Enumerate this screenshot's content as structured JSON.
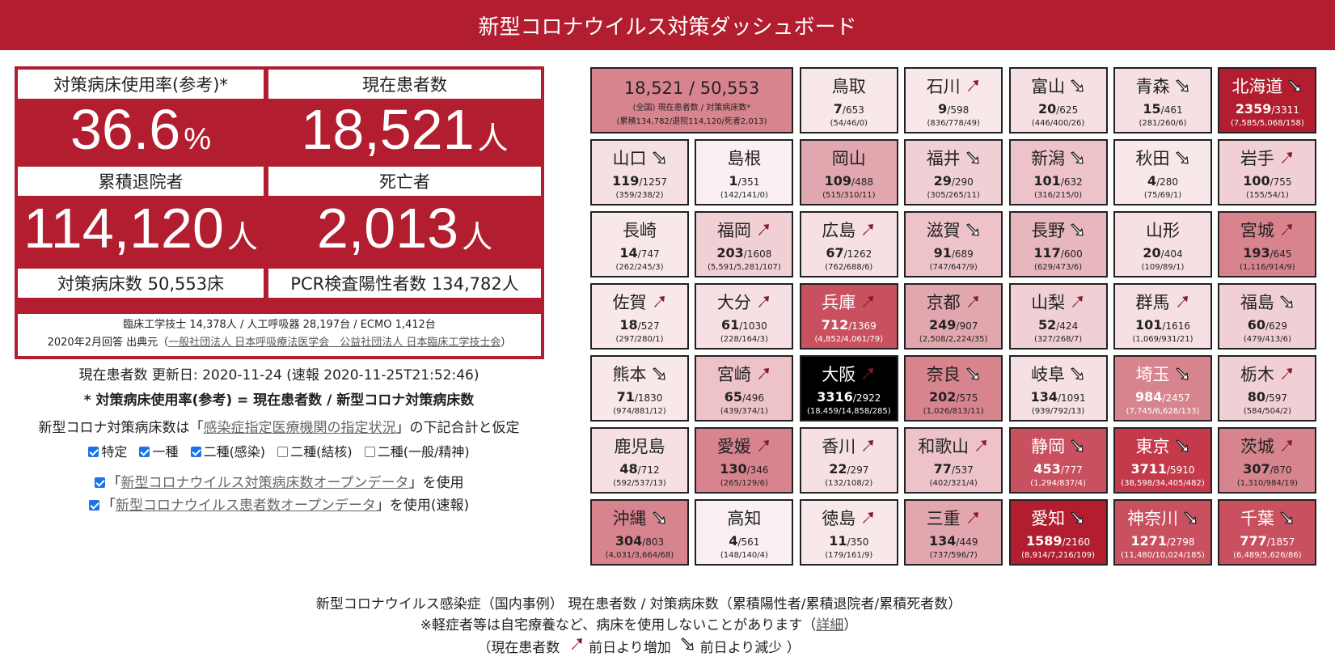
{
  "header": {
    "title": "新型コロナウイルス対策ダッシュボード"
  },
  "stats": {
    "occupancy_label": "対策病床使用率(参考)*",
    "occupancy_value": "36.6",
    "occupancy_unit": "%",
    "patients_label": "現在患者数",
    "patients_value": "18,521",
    "patients_unit": "人",
    "discharged_label": "累積退院者",
    "discharged_value": "114,120",
    "discharged_unit": "人",
    "deaths_label": "死亡者",
    "deaths_value": "2,013",
    "deaths_unit": "人",
    "beds_label": "対策病床数 50,553床",
    "pcr_label": "PCR検査陽性者数 134,782人",
    "equipment": "臨床工学技士 14,378人 / 人工呼吸器 28,197台 / ECMO 1,412台",
    "source_prefix": "2020年2月回答 出典元（",
    "source_link": "一般社団法人 日本呼吸療法医学会　公益社団法人 日本臨床工学技士会",
    "source_suffix": "）"
  },
  "info": {
    "updated": "現在患者数 更新日: 2020-11-24 (速報 2020-11-25T21:52:46)",
    "formula": "* 対策病床使用率(参考) = 現在患者数 / 新型コロナ対策病床数",
    "assume_prefix": "新型コロナ対策病床数は「",
    "assume_link": "感染症指定医療機関の指定状況",
    "assume_suffix": "」の下記合計と仮定"
  },
  "checks": {
    "row1": [
      {
        "label": "特定",
        "checked": true
      },
      {
        "label": "一種",
        "checked": true
      },
      {
        "label": "二種(感染)",
        "checked": true
      },
      {
        "label": "二種(結核)",
        "checked": false
      },
      {
        "label": "二種(一般/精神)",
        "checked": false
      }
    ],
    "open1_prefix": "「",
    "open1_link": "新型コロナウイルス対策病床数オープンデータ",
    "open1_suffix": "」を使用",
    "open2_prefix": "「",
    "open2_link": "新型コロナウイルス患者数オープンデータ",
    "open2_suffix": "」を使用(速報)"
  },
  "summary": {
    "value": "18,521 / 50,553",
    "line1": "(全国) 現在患者数 / 対策病床数*",
    "line2": "(累積134,782/退院114,120/死者2,013)",
    "color": "#d8848e"
  },
  "prefectures": [
    {
      "name": "鳥取",
      "cur": "7",
      "beds": "653",
      "sub": "(54/46/0)",
      "trend": "",
      "bg": "#f9e8ea"
    },
    {
      "name": "石川",
      "cur": "9",
      "beds": "598",
      "sub": "(836/778/49)",
      "trend": "up",
      "bg": "#f9e8ea"
    },
    {
      "name": "富山",
      "cur": "20",
      "beds": "625",
      "sub": "(446/400/26)",
      "trend": "down",
      "bg": "#f6e0e3"
    },
    {
      "name": "青森",
      "cur": "15",
      "beds": "461",
      "sub": "(281/260/6)",
      "trend": "down",
      "bg": "#f6e0e3"
    },
    {
      "name": "北海道",
      "cur": "2359",
      "beds": "3311",
      "sub": "(7,585/5,068/158)",
      "trend": "down",
      "bg": "#b21e2f",
      "dark": true
    },
    {
      "name": "山口",
      "cur": "119",
      "beds": "1257",
      "sub": "(359/238/2)",
      "trend": "down",
      "bg": "#f6e0e3"
    },
    {
      "name": "島根",
      "cur": "1",
      "beds": "351",
      "sub": "(142/141/0)",
      "trend": "",
      "bg": "#fbf0f1"
    },
    {
      "name": "岡山",
      "cur": "109",
      "beds": "488",
      "sub": "(515/310/11)",
      "trend": "",
      "bg": "#e2a6ae"
    },
    {
      "name": "福井",
      "cur": "29",
      "beds": "290",
      "sub": "(305/265/11)",
      "trend": "down",
      "bg": "#f1d0d5"
    },
    {
      "name": "新潟",
      "cur": "101",
      "beds": "632",
      "sub": "(316/215/0)",
      "trend": "down",
      "bg": "#edc3c9"
    },
    {
      "name": "秋田",
      "cur": "4",
      "beds": "280",
      "sub": "(75/69/1)",
      "trend": "down",
      "bg": "#f9e8ea"
    },
    {
      "name": "岩手",
      "cur": "100",
      "beds": "755",
      "sub": "(155/54/1)",
      "trend": "up",
      "bg": "#f1d0d5"
    },
    {
      "name": "長崎",
      "cur": "14",
      "beds": "747",
      "sub": "(262/245/3)",
      "trend": "",
      "bg": "#f9e8ea"
    },
    {
      "name": "福岡",
      "cur": "203",
      "beds": "1608",
      "sub": "(5,591/5,281/107)",
      "trend": "up",
      "bg": "#f1d0d5"
    },
    {
      "name": "広島",
      "cur": "67",
      "beds": "1262",
      "sub": "(762/688/6)",
      "trend": "up",
      "bg": "#f6e0e3"
    },
    {
      "name": "滋賀",
      "cur": "91",
      "beds": "689",
      "sub": "(747/647/9)",
      "trend": "down",
      "bg": "#edc3c9"
    },
    {
      "name": "長野",
      "cur": "117",
      "beds": "600",
      "sub": "(629/473/6)",
      "trend": "down",
      "bg": "#e8b7be"
    },
    {
      "name": "山形",
      "cur": "20",
      "beds": "404",
      "sub": "(109/89/1)",
      "trend": "",
      "bg": "#f6e0e3"
    },
    {
      "name": "宮城",
      "cur": "193",
      "beds": "645",
      "sub": "(1,116/914/9)",
      "trend": "up",
      "bg": "#d8848e"
    },
    {
      "name": "佐賀",
      "cur": "18",
      "beds": "527",
      "sub": "(297/280/1)",
      "trend": "up",
      "bg": "#f9e8ea"
    },
    {
      "name": "大分",
      "cur": "61",
      "beds": "1030",
      "sub": "(228/164/3)",
      "trend": "up",
      "bg": "#f6e0e3"
    },
    {
      "name": "兵庫",
      "cur": "712",
      "beds": "1369",
      "sub": "(4,852/4,061/79)",
      "trend": "up",
      "bg": "#c9505e",
      "dark": true
    },
    {
      "name": "京都",
      "cur": "249",
      "beds": "907",
      "sub": "(2,508/2,224/35)",
      "trend": "up",
      "bg": "#e2a6ae"
    },
    {
      "name": "山梨",
      "cur": "52",
      "beds": "424",
      "sub": "(327/268/7)",
      "trend": "up",
      "bg": "#f1d0d5"
    },
    {
      "name": "群馬",
      "cur": "101",
      "beds": "1616",
      "sub": "(1,069/931/21)",
      "trend": "up",
      "bg": "#f6e0e3"
    },
    {
      "name": "福島",
      "cur": "60",
      "beds": "629",
      "sub": "(479/413/6)",
      "trend": "down",
      "bg": "#f1d0d5"
    },
    {
      "name": "熊本",
      "cur": "71",
      "beds": "1830",
      "sub": "(974/881/12)",
      "trend": "down",
      "bg": "#f9e8ea"
    },
    {
      "name": "宮崎",
      "cur": "65",
      "beds": "496",
      "sub": "(439/374/1)",
      "trend": "up",
      "bg": "#edc3c9"
    },
    {
      "name": "大阪",
      "cur": "3316",
      "beds": "2922",
      "sub": "(18,459/14,858/285)",
      "trend": "up",
      "bg": "#000000",
      "dark": true
    },
    {
      "name": "奈良",
      "cur": "202",
      "beds": "575",
      "sub": "(1,026/813/11)",
      "trend": "down",
      "bg": "#d8848e"
    },
    {
      "name": "岐阜",
      "cur": "134",
      "beds": "1091",
      "sub": "(939/792/13)",
      "trend": "down",
      "bg": "#f6e0e3"
    },
    {
      "name": "埼玉",
      "cur": "984",
      "beds": "2457",
      "sub": "(7,745/6,628/133)",
      "trend": "down",
      "bg": "#d8848e",
      "dark": true
    },
    {
      "name": "栃木",
      "cur": "80",
      "beds": "597",
      "sub": "(584/504/2)",
      "trend": "up",
      "bg": "#f1d0d5"
    },
    {
      "name": "鹿児島",
      "cur": "48",
      "beds": "712",
      "sub": "(592/537/13)",
      "trend": "",
      "bg": "#f6e0e3"
    },
    {
      "name": "愛媛",
      "cur": "130",
      "beds": "346",
      "sub": "(265/129/6)",
      "trend": "up",
      "bg": "#d8848e"
    },
    {
      "name": "香川",
      "cur": "22",
      "beds": "297",
      "sub": "(132/108/2)",
      "trend": "up",
      "bg": "#f6e0e3"
    },
    {
      "name": "和歌山",
      "cur": "77",
      "beds": "537",
      "sub": "(402/321/4)",
      "trend": "up",
      "bg": "#edc3c9"
    },
    {
      "name": "静岡",
      "cur": "453",
      "beds": "777",
      "sub": "(1,294/837/4)",
      "trend": "down",
      "bg": "#c9505e",
      "dark": true
    },
    {
      "name": "東京",
      "cur": "3711",
      "beds": "5910",
      "sub": "(38,598/34,405/482)",
      "trend": "down",
      "bg": "#c43a4a",
      "dark": true
    },
    {
      "name": "茨城",
      "cur": "307",
      "beds": "870",
      "sub": "(1,310/984/19)",
      "trend": "up",
      "bg": "#d8848e"
    },
    {
      "name": "沖縄",
      "cur": "304",
      "beds": "803",
      "sub": "(4,031/3,664/68)",
      "trend": "down",
      "bg": "#d8848e"
    },
    {
      "name": "高知",
      "cur": "4",
      "beds": "561",
      "sub": "(148/140/4)",
      "trend": "",
      "bg": "#fbf0f1"
    },
    {
      "name": "徳島",
      "cur": "11",
      "beds": "350",
      "sub": "(179/161/9)",
      "trend": "up",
      "bg": "#f9e8ea"
    },
    {
      "name": "三重",
      "cur": "134",
      "beds": "449",
      "sub": "(737/596/7)",
      "trend": "up",
      "bg": "#e2a6ae"
    },
    {
      "name": "愛知",
      "cur": "1589",
      "beds": "2160",
      "sub": "(8,914/7,216/109)",
      "trend": "down",
      "bg": "#b21e2f",
      "dark": true
    },
    {
      "name": "神奈川",
      "cur": "1271",
      "beds": "2798",
      "sub": "(11,480/10,024/185)",
      "trend": "down",
      "bg": "#c9505e",
      "dark": true
    },
    {
      "name": "千葉",
      "cur": "777",
      "beds": "1857",
      "sub": "(6,489/5,626/86)",
      "trend": "down",
      "bg": "#c9505e",
      "dark": true
    }
  ],
  "footer": {
    "line1": "新型コロナウイルス感染症（国内事例） 現在患者数 / 対策病床数（累積陽性者/累積退院者/累積死者数）",
    "line2_prefix": "※軽症者等は自宅療養など、病床を使用しないことがあります（",
    "line2_link": "詳細",
    "line2_suffix": "）",
    "legend_prefix": "（現在患者数",
    "legend_up": "前日より増加",
    "legend_down": "前日より減少",
    "legend_suffix": "）"
  }
}
